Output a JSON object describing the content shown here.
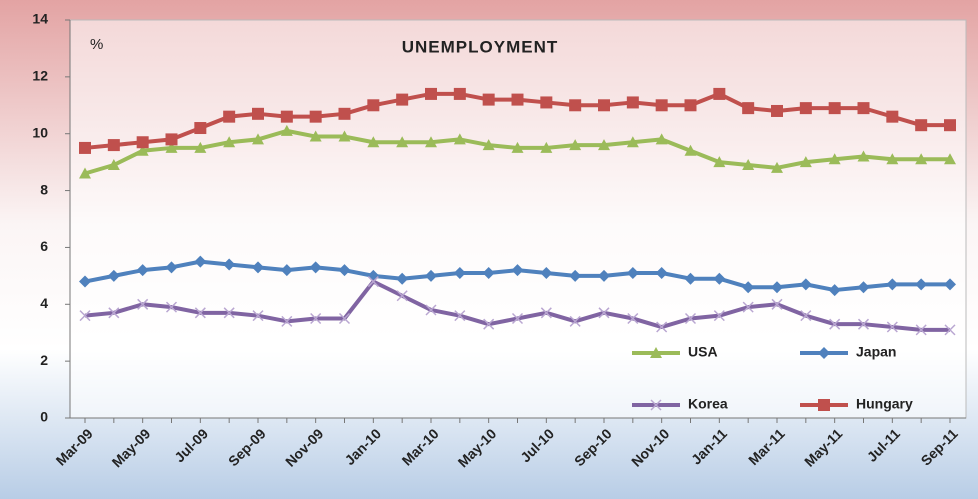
{
  "chart_data": {
    "type": "line",
    "title": "UNEMPLOYMENT",
    "y_label": "%",
    "categories": [
      "Mar-09",
      null,
      "May-09",
      null,
      "Jul-09",
      null,
      "Sep-09",
      null,
      "Nov-09",
      null,
      "Jan-10",
      null,
      "Mar-10",
      null,
      "May-10",
      null,
      "Jul-10",
      null,
      "Sep-10",
      null,
      "Nov-10",
      null,
      "Jan-11",
      null,
      "Mar-11",
      null,
      "May-11",
      null,
      "Jul-11",
      null,
      "Sep-11"
    ],
    "series": [
      {
        "name": "USA",
        "color": "#9bbb59",
        "marker": "triangle",
        "values": [
          8.6,
          8.9,
          9.4,
          9.5,
          9.5,
          9.7,
          9.8,
          10.1,
          9.9,
          9.9,
          9.7,
          9.7,
          9.7,
          9.8,
          9.6,
          9.5,
          9.5,
          9.6,
          9.6,
          9.7,
          9.8,
          9.4,
          9.0,
          8.9,
          8.8,
          9.0,
          9.1,
          9.2,
          9.1,
          9.1,
          9.1
        ]
      },
      {
        "name": "Japan",
        "color": "#4f81bd",
        "marker": "diamond",
        "values": [
          4.8,
          5.0,
          5.2,
          5.3,
          5.5,
          5.4,
          5.3,
          5.2,
          5.3,
          5.2,
          5.0,
          4.9,
          5.0,
          5.1,
          5.1,
          5.2,
          5.1,
          5.0,
          5.0,
          5.1,
          5.1,
          4.9,
          4.9,
          4.6,
          4.6,
          4.7,
          4.5,
          4.6,
          4.7,
          4.7,
          4.7
        ]
      },
      {
        "name": "Korea",
        "color": "#8064a2",
        "marker": "x",
        "values": [
          3.6,
          3.7,
          4.0,
          3.9,
          3.7,
          3.7,
          3.6,
          3.4,
          3.5,
          3.5,
          4.8,
          4.3,
          3.8,
          3.6,
          3.3,
          3.5,
          3.7,
          3.4,
          3.7,
          3.5,
          3.2,
          3.5,
          3.6,
          3.9,
          4.0,
          3.6,
          3.3,
          3.3,
          3.2,
          3.1,
          3.1
        ]
      },
      {
        "name": "Hungary",
        "color": "#c0504d",
        "marker": "square",
        "values": [
          9.5,
          9.6,
          9.7,
          9.8,
          10.2,
          10.6,
          10.7,
          10.6,
          10.6,
          10.7,
          11.0,
          11.2,
          11.4,
          11.4,
          11.2,
          11.2,
          11.1,
          11.0,
          11.0,
          11.1,
          11.0,
          11.0,
          11.4,
          10.9,
          10.8,
          10.9,
          10.9,
          10.9,
          10.6,
          10.3,
          10.3
        ]
      }
    ],
    "ylim": [
      0,
      14
    ],
    "yticks": [
      0,
      2,
      4,
      6,
      8,
      10,
      12,
      14
    ],
    "grid": false,
    "legend": "lower right"
  }
}
